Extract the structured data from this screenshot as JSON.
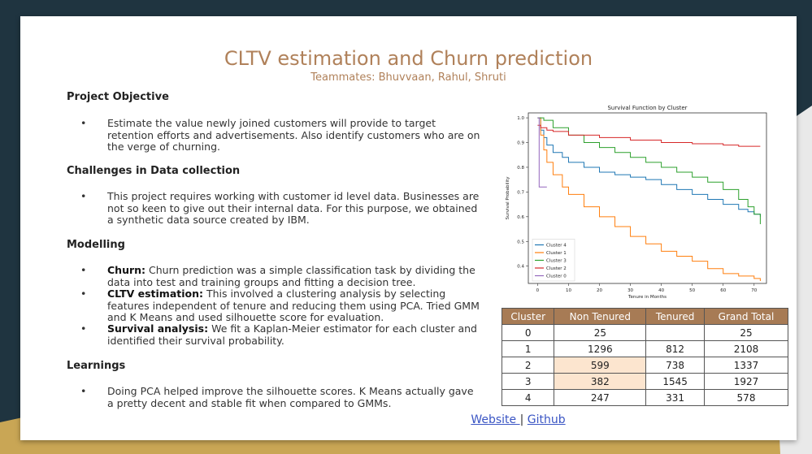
{
  "slide": {
    "title": "CLTV estimation and Churn prediction",
    "subtitle": "Teammates: Bhuvvaan, Rahul, Shruti"
  },
  "sections": [
    {
      "heading": "Project Objective",
      "bullets": [
        {
          "bold": "",
          "text": "Estimate the value newly joined customers will provide to target retention efforts and advertisements. Also identify customers who are on the verge of churning."
        }
      ]
    },
    {
      "heading": "Challenges in Data collection",
      "bullets": [
        {
          "bold": "",
          "text": "This project requires working with customer id level data. Businesses are not so keen to give out their internal data. For this purpose, we obtained a synthetic data source created by IBM."
        }
      ]
    },
    {
      "heading": "Modelling",
      "bullets": [
        {
          "bold": "Churn:",
          "text": " Churn prediction was a simple classification task by dividing the data into test and training groups and fitting a decision tree."
        },
        {
          "bold": "CLTV estimation:",
          "text": " This involved a clustering analysis by  selecting features independent of tenure and reducing them using PCA. Tried GMM and K Means and used silhouette score for evaluation."
        },
        {
          "bold": "Survival analysis:",
          "text": " We fit a Kaplan-Meier estimator for each cluster and identified their survival probability."
        }
      ]
    },
    {
      "heading": "Learnings",
      "bullets": [
        {
          "bold": "",
          "text": "Doing PCA helped improve the silhouette scores. K Means actually gave a pretty decent and stable fit when compared to GMMs."
        }
      ]
    }
  ],
  "table": {
    "headers": [
      "Cluster",
      "Non Tenured",
      "Tenured",
      "Grand Total"
    ],
    "rows": [
      [
        "0",
        "25",
        "",
        "25"
      ],
      [
        "1",
        "1296",
        "812",
        "2108"
      ],
      [
        "2",
        "599",
        "738",
        "1337"
      ],
      [
        "3",
        "382",
        "1545",
        "1927"
      ],
      [
        "4",
        "247",
        "331",
        "578"
      ]
    ],
    "highlight_color": "#fce5cf",
    "header_color": "#a77b55"
  },
  "links": {
    "website": "Website ",
    "separator": "|",
    "github": "Github"
  },
  "chart_data": {
    "type": "line",
    "title": "Survival Function by Cluster",
    "xlabel": "Tenure in Months",
    "ylabel": "Survival Probability",
    "xlim": [
      -3,
      74
    ],
    "ylim": [
      0.33,
      1.02
    ],
    "xticks": [
      0,
      10,
      20,
      30,
      40,
      50,
      60,
      70
    ],
    "yticks": [
      0.4,
      0.5,
      0.6,
      0.7,
      0.8,
      0.9,
      1.0
    ],
    "legend_position": "lower-left",
    "series": [
      {
        "name": "Cluster 4",
        "color": "#1f77b4",
        "x": [
          0,
          1,
          2,
          3,
          5,
          8,
          10,
          15,
          20,
          25,
          30,
          35,
          40,
          45,
          50,
          55,
          60,
          65,
          68,
          70,
          72
        ],
        "y": [
          1.0,
          0.95,
          0.92,
          0.89,
          0.86,
          0.84,
          0.82,
          0.8,
          0.78,
          0.77,
          0.76,
          0.75,
          0.73,
          0.71,
          0.69,
          0.67,
          0.65,
          0.63,
          0.62,
          0.61,
          0.6
        ]
      },
      {
        "name": "Cluster 1",
        "color": "#ff7f0e",
        "x": [
          0,
          1,
          2,
          3,
          5,
          8,
          10,
          15,
          20,
          25,
          30,
          35,
          40,
          45,
          50,
          55,
          60,
          65,
          68,
          70,
          72
        ],
        "y": [
          1.0,
          0.93,
          0.87,
          0.82,
          0.77,
          0.72,
          0.69,
          0.64,
          0.6,
          0.56,
          0.52,
          0.49,
          0.46,
          0.44,
          0.42,
          0.39,
          0.37,
          0.36,
          0.36,
          0.35,
          0.34
        ]
      },
      {
        "name": "Cluster 3",
        "color": "#2ca02c",
        "x": [
          0,
          2,
          5,
          10,
          15,
          20,
          25,
          30,
          35,
          40,
          45,
          50,
          55,
          60,
          65,
          68,
          70,
          72
        ],
        "y": [
          1.0,
          0.99,
          0.96,
          0.93,
          0.9,
          0.88,
          0.86,
          0.84,
          0.82,
          0.8,
          0.78,
          0.76,
          0.74,
          0.71,
          0.67,
          0.64,
          0.61,
          0.57
        ]
      },
      {
        "name": "Cluster 2",
        "color": "#d62728",
        "x": [
          0,
          1,
          3,
          5,
          10,
          20,
          30,
          40,
          50,
          60,
          65,
          70,
          72
        ],
        "y": [
          0.97,
          0.96,
          0.95,
          0.945,
          0.93,
          0.92,
          0.91,
          0.9,
          0.895,
          0.89,
          0.885,
          0.885,
          0.885
        ]
      },
      {
        "name": "Cluster 0",
        "color": "#9467bd",
        "x": [
          0,
          0.5,
          1,
          3
        ],
        "y": [
          1.0,
          0.72,
          0.72,
          0.72
        ]
      }
    ]
  }
}
